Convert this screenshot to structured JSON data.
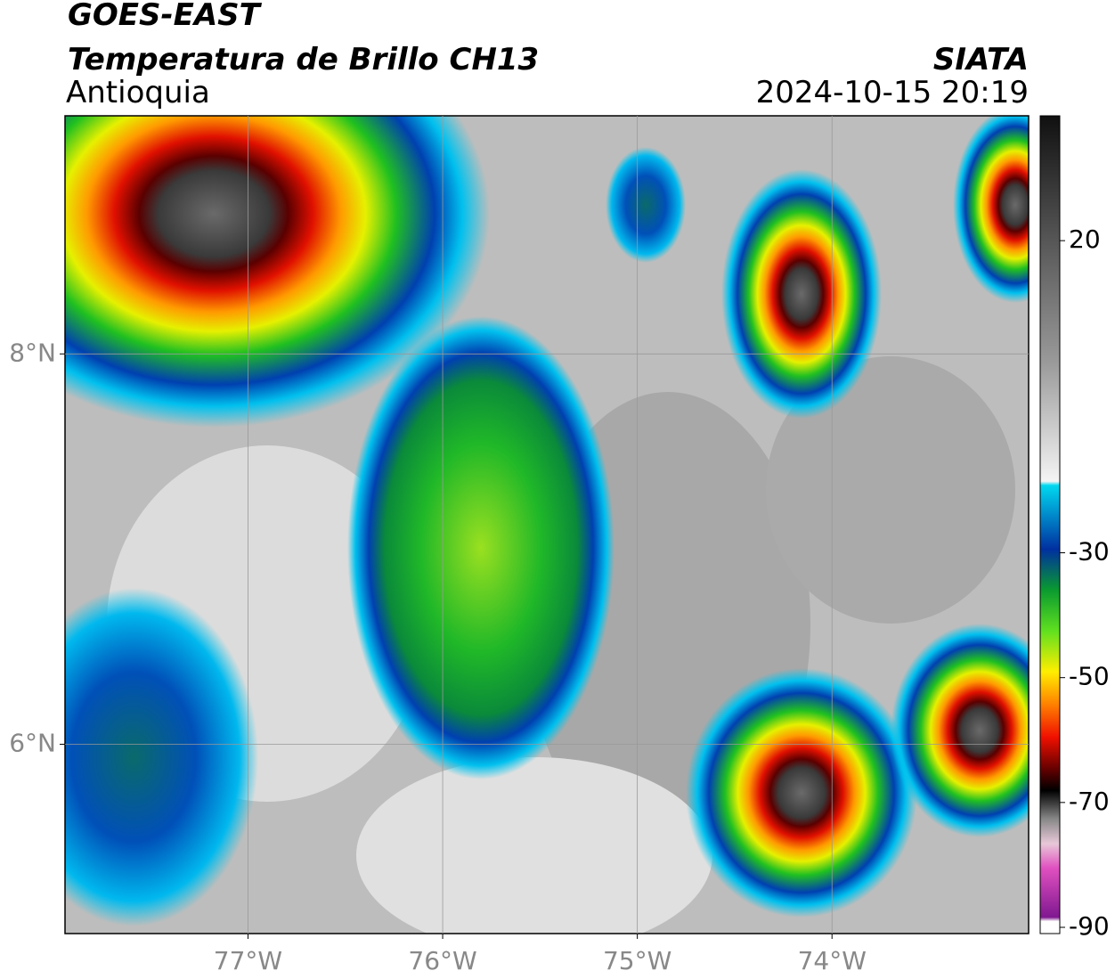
{
  "header": {
    "title": "GOES-EAST",
    "subtitle": "Temperatura de Brillo CH13",
    "region": "Antioquia",
    "source": "SIATA",
    "datetime": "2024-10-15 20:19"
  },
  "map": {
    "xlim": [
      -77.94,
      -72.99
    ],
    "ylim": [
      5.03,
      9.22
    ],
    "xticks": [
      {
        "value": -77,
        "label": "77°W"
      },
      {
        "value": -76,
        "label": "76°W"
      },
      {
        "value": -75,
        "label": "75°W"
      },
      {
        "value": -74,
        "label": "74°W"
      }
    ],
    "yticks": [
      {
        "value": 8,
        "label": "8°N"
      },
      {
        "value": 6,
        "label": "6°N"
      }
    ],
    "grid": true
  },
  "colorbar": {
    "lim": [
      -91,
      40
    ],
    "ticks": [
      20,
      -30,
      -50,
      -70,
      -90
    ]
  }
}
